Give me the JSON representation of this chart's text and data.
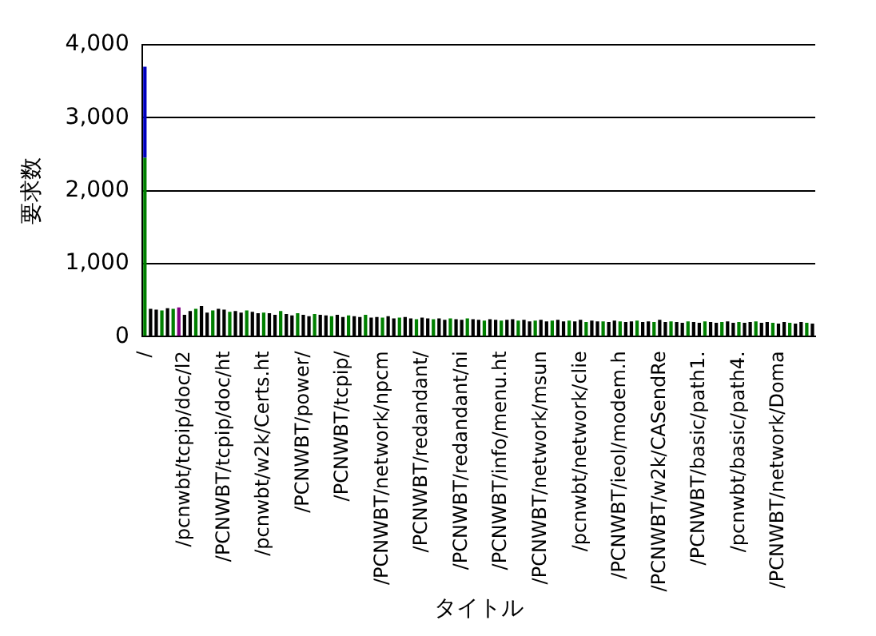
{
  "chart_data": {
    "type": "bar",
    "stacked": true,
    "xlabel": "タイトル",
    "ylabel": "要求数",
    "grid": "y",
    "legend": false,
    "categories": [
      "/",
      null,
      null,
      null,
      null,
      null,
      null,
      "/pcnwbt/tcpip/doc/l2",
      null,
      null,
      null,
      null,
      null,
      null,
      "/PCNWBT/tcpip/doc/ht",
      null,
      null,
      null,
      null,
      null,
      null,
      "/pcnwbt/w2k/Certs.ht",
      null,
      null,
      null,
      null,
      null,
      null,
      "/PCNWBT/power/",
      null,
      null,
      null,
      null,
      null,
      null,
      "/PCNWBT/tcpip/",
      null,
      null,
      null,
      null,
      null,
      null,
      "/PCNWBT/network/npcm",
      null,
      null,
      null,
      null,
      null,
      null,
      "/PCNWBT/redandant/",
      null,
      null,
      null,
      null,
      null,
      null,
      "/PCNWBT/redandant/ni",
      null,
      null,
      null,
      null,
      null,
      null,
      "/PCNWBT/info/menu.ht",
      null,
      null,
      null,
      null,
      null,
      null,
      "/PCNWBT/network/msun",
      null,
      null,
      null,
      null,
      null,
      null,
      "/pcnwbt/network/clie",
      null,
      null,
      null,
      null,
      null,
      null,
      "/PCNWBT/ieol/modem.h",
      null,
      null,
      null,
      null,
      null,
      null,
      "/PCNWBT/w2k/CASendRe",
      null,
      null,
      null,
      null,
      null,
      null,
      "/PCNWBT/basic/path1.",
      null,
      null,
      null,
      null,
      null,
      null,
      "/pcnwbt/basic/path4.",
      null,
      null,
      null,
      null,
      null,
      null,
      "/PCNWBT/network/Doma",
      null,
      null,
      null,
      null,
      null,
      null
    ],
    "ylim": [
      0,
      4000
    ],
    "yticks": [
      0,
      {
        "value": 1000,
        "label": "1,000"
      },
      {
        "value": 2000,
        "label": "2,000"
      },
      {
        "value": 3000,
        "label": "3,000"
      },
      {
        "value": 4000,
        "label": "4,000"
      }
    ],
    "series": [
      {
        "colors": [
          "#008000",
          "#000000",
          "#000000",
          "#008000",
          "#000000",
          "#008000",
          "#800080",
          "#000000",
          "#000000",
          "#008000",
          "#000000",
          "#000000",
          "#008000",
          "#000000",
          "#000000",
          "#008000",
          "#000000",
          "#000000",
          "#008000",
          "#000000",
          "#000000",
          "#008000",
          "#000000",
          "#000000",
          "#008000",
          "#000000",
          "#000000",
          "#008000",
          "#000000",
          "#000000",
          "#008000",
          "#000000",
          "#000000",
          "#008000",
          "#000000",
          "#000000",
          "#008000",
          "#000000",
          "#000000",
          "#008000",
          "#000000",
          "#000000",
          "#008000",
          "#000000",
          "#000000",
          "#008000",
          "#000000",
          "#000000",
          "#008000",
          "#000000",
          "#000000",
          "#008000",
          "#000000",
          "#000000",
          "#008000",
          "#000000",
          "#000000",
          "#008000",
          "#000000",
          "#000000",
          "#008000",
          "#000000",
          "#000000",
          "#008000",
          "#000000",
          "#000000",
          "#008000",
          "#000000",
          "#000000",
          "#008000",
          "#000000",
          "#000000",
          "#008000",
          "#000000",
          "#000000",
          "#008000",
          "#000000",
          "#000000",
          "#008000",
          "#000000",
          "#000000",
          "#008000",
          "#000000",
          "#000000",
          "#008000",
          "#000000",
          "#000000",
          "#008000",
          "#000000",
          "#000000",
          "#008000",
          "#000000",
          "#000000",
          "#008000",
          "#000000",
          "#000000",
          "#008000",
          "#000000",
          "#000000",
          "#008000",
          "#000000",
          "#000000",
          "#008000",
          "#000000",
          "#000000",
          "#008000",
          "#000000",
          "#000000",
          "#008000",
          "#000000",
          "#000000",
          "#008000",
          "#000000",
          "#000000",
          "#008000",
          "#000000",
          "#000000",
          "#008000",
          "#000000"
        ],
        "values": [
          2450,
          380,
          370,
          360,
          390,
          380,
          400,
          300,
          350,
          380,
          420,
          330,
          360,
          380,
          370,
          340,
          350,
          330,
          360,
          340,
          320,
          330,
          320,
          300,
          350,
          310,
          290,
          320,
          300,
          280,
          310,
          300,
          290,
          280,
          300,
          270,
          290,
          280,
          270,
          300,
          260,
          270,
          260,
          280,
          250,
          260,
          270,
          250,
          240,
          260,
          250,
          240,
          250,
          230,
          250,
          240,
          230,
          250,
          240,
          230,
          220,
          240,
          230,
          220,
          230,
          240,
          220,
          230,
          210,
          220,
          230,
          210,
          220,
          230,
          210,
          220,
          210,
          230,
          200,
          220,
          210,
          210,
          200,
          220,
          210,
          200,
          210,
          220,
          200,
          210,
          200,
          230,
          200,
          210,
          200,
          190,
          210,
          200,
          190,
          210,
          200,
          190,
          200,
          210,
          190,
          200,
          190,
          200,
          210,
          190,
          200,
          190,
          180,
          200,
          190,
          180,
          200,
          190,
          180
        ]
      },
      {
        "color": "#0000c0",
        "values": [
          1250,
          null,
          null,
          null,
          null,
          null,
          null,
          null,
          null,
          null,
          null,
          null,
          null,
          null,
          null,
          null,
          null,
          null,
          null,
          null,
          null,
          null,
          null,
          null,
          null,
          null,
          null,
          null,
          null,
          null,
          null,
          null,
          null,
          null,
          null,
          null,
          null,
          null,
          null,
          null,
          null,
          null,
          null,
          null,
          null,
          null,
          null,
          null,
          null,
          null,
          null,
          null,
          null,
          null,
          null,
          null,
          null,
          null,
          null,
          null,
          null,
          null,
          null,
          null,
          null,
          null,
          null,
          null,
          null,
          null,
          null,
          null,
          null,
          null,
          null,
          null,
          null,
          null,
          null,
          null,
          null,
          null,
          null,
          null,
          null,
          null,
          null,
          null,
          null,
          null,
          null,
          null,
          null,
          null,
          null,
          null,
          null,
          null,
          null,
          null,
          null,
          null,
          null,
          null,
          null,
          null,
          null,
          null,
          null,
          null,
          null,
          null,
          null,
          null,
          null,
          null,
          null,
          null,
          null
        ]
      }
    ]
  }
}
